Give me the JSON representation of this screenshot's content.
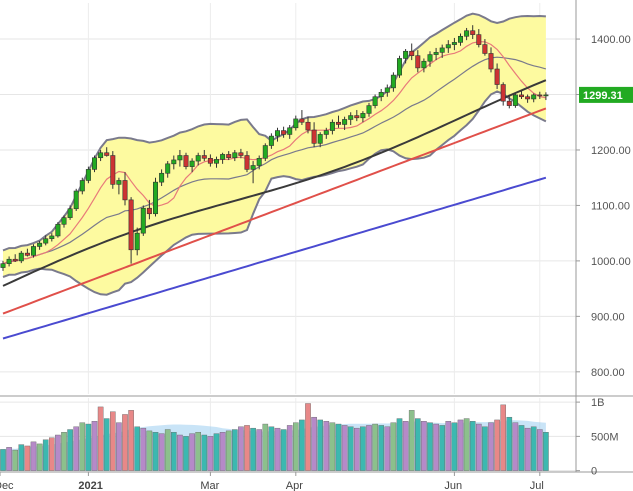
{
  "chart_data": {
    "type": "candlestick",
    "title": "",
    "price_axis": {
      "ticks": [
        {
          "value": 800,
          "label": "800.00"
        },
        {
          "value": 900,
          "label": "900.00"
        },
        {
          "value": 1000,
          "label": "1000.00"
        },
        {
          "value": 1100,
          "label": "1100.00"
        },
        {
          "value": 1200,
          "label": "1200.00"
        },
        {
          "value": 1300,
          "label": "1300.00"
        },
        {
          "value": 1400,
          "label": "1400.00"
        }
      ],
      "ylim": [
        760,
        1465
      ]
    },
    "volume_axis": {
      "ticks": [
        {
          "value": 0,
          "label": "0"
        },
        {
          "value": 500,
          "label": "500M"
        },
        {
          "value": 1000,
          "label": "1B"
        }
      ],
      "ylim": [
        -20,
        1060
      ]
    },
    "x_labels": [
      {
        "index": -1,
        "label": "Dec",
        "bold": false
      },
      {
        "index": 14,
        "label": "2021",
        "bold": true
      },
      {
        "index": 34,
        "label": "Mar",
        "bold": false
      },
      {
        "index": 48,
        "label": "Apr",
        "bold": false
      },
      {
        "index": 74,
        "label": "Jun",
        "bold": false
      },
      {
        "index": 88,
        "label": "Jul",
        "bold": false
      }
    ],
    "last_price": {
      "value": 1299.31,
      "label": "1299.31",
      "color": "#22aa22"
    },
    "colors": {
      "up": "#22aa22",
      "down": "#cc3333",
      "bollinger_fill": "#fdfaa0",
      "bollinger_line": "#7a7a8c",
      "ma_short": "#e87a7a",
      "ma_50": "#3a3a3a",
      "ma_100": "#e0504a",
      "ma_200": "#4a4ad0",
      "vol_up": "#8cc08c",
      "vol_down": "#e88888",
      "vol_alt1": "#3cb8b0",
      "vol_alt2": "#b58ac8",
      "vol_avg": "#9ccdf0"
    },
    "candles": [
      [
        988,
        1000,
        982,
        995
      ],
      [
        995,
        1008,
        990,
        1003
      ],
      [
        1003,
        1012,
        998,
        1000
      ],
      [
        1000,
        1018,
        996,
        1014
      ],
      [
        1014,
        1022,
        1008,
        1010
      ],
      [
        1010,
        1030,
        1006,
        1026
      ],
      [
        1026,
        1036,
        1020,
        1032
      ],
      [
        1032,
        1046,
        1028,
        1040
      ],
      [
        1040,
        1050,
        1035,
        1045
      ],
      [
        1045,
        1070,
        1042,
        1066
      ],
      [
        1066,
        1082,
        1060,
        1078
      ],
      [
        1078,
        1100,
        1074,
        1094
      ],
      [
        1094,
        1130,
        1090,
        1126
      ],
      [
        1126,
        1150,
        1120,
        1145
      ],
      [
        1145,
        1170,
        1140,
        1165
      ],
      [
        1165,
        1190,
        1160,
        1186
      ],
      [
        1186,
        1200,
        1180,
        1195
      ],
      [
        1195,
        1205,
        1188,
        1190
      ],
      [
        1190,
        1198,
        1130,
        1138
      ],
      [
        1138,
        1150,
        1120,
        1145
      ],
      [
        1145,
        1160,
        1100,
        1110
      ],
      [
        1110,
        1115,
        995,
        1020
      ],
      [
        1020,
        1060,
        1010,
        1050
      ],
      [
        1050,
        1100,
        1045,
        1095
      ],
      [
        1095,
        1110,
        1075,
        1085
      ],
      [
        1085,
        1150,
        1080,
        1142
      ],
      [
        1142,
        1165,
        1135,
        1158
      ],
      [
        1158,
        1180,
        1150,
        1175
      ],
      [
        1175,
        1190,
        1165,
        1182
      ],
      [
        1182,
        1200,
        1170,
        1190
      ],
      [
        1190,
        1195,
        1165,
        1170
      ],
      [
        1170,
        1185,
        1160,
        1180
      ],
      [
        1180,
        1195,
        1172,
        1190
      ],
      [
        1190,
        1200,
        1180,
        1185
      ],
      [
        1185,
        1192,
        1170,
        1176
      ],
      [
        1176,
        1188,
        1168,
        1183
      ],
      [
        1183,
        1195,
        1175,
        1192
      ],
      [
        1192,
        1198,
        1182,
        1186
      ],
      [
        1186,
        1200,
        1180,
        1195
      ],
      [
        1195,
        1202,
        1185,
        1190
      ],
      [
        1190,
        1198,
        1160,
        1165
      ],
      [
        1165,
        1180,
        1140,
        1172
      ],
      [
        1172,
        1190,
        1165,
        1185
      ],
      [
        1185,
        1212,
        1180,
        1208
      ],
      [
        1208,
        1230,
        1202,
        1225
      ],
      [
        1225,
        1240,
        1215,
        1235
      ],
      [
        1235,
        1242,
        1222,
        1228
      ],
      [
        1228,
        1245,
        1220,
        1240
      ],
      [
        1240,
        1262,
        1235,
        1256
      ],
      [
        1256,
        1272,
        1245,
        1250
      ],
      [
        1250,
        1260,
        1230,
        1236
      ],
      [
        1236,
        1250,
        1205,
        1212
      ],
      [
        1212,
        1232,
        1205,
        1228
      ],
      [
        1228,
        1240,
        1220,
        1235
      ],
      [
        1235,
        1255,
        1228,
        1250
      ],
      [
        1250,
        1262,
        1240,
        1246
      ],
      [
        1246,
        1260,
        1236,
        1255
      ],
      [
        1255,
        1268,
        1245,
        1262
      ],
      [
        1262,
        1272,
        1252,
        1258
      ],
      [
        1258,
        1270,
        1250,
        1266
      ],
      [
        1266,
        1285,
        1260,
        1280
      ],
      [
        1280,
        1300,
        1275,
        1296
      ],
      [
        1296,
        1310,
        1288,
        1304
      ],
      [
        1304,
        1318,
        1296,
        1312
      ],
      [
        1312,
        1340,
        1305,
        1335
      ],
      [
        1335,
        1370,
        1330,
        1365
      ],
      [
        1365,
        1382,
        1356,
        1378
      ],
      [
        1378,
        1392,
        1362,
        1370
      ],
      [
        1370,
        1380,
        1340,
        1348
      ],
      [
        1348,
        1365,
        1340,
        1360
      ],
      [
        1360,
        1378,
        1350,
        1372
      ],
      [
        1372,
        1384,
        1362,
        1376
      ],
      [
        1376,
        1390,
        1366,
        1384
      ],
      [
        1384,
        1398,
        1375,
        1390
      ],
      [
        1390,
        1402,
        1380,
        1394
      ],
      [
        1394,
        1410,
        1388,
        1405
      ],
      [
        1405,
        1420,
        1398,
        1415
      ],
      [
        1415,
        1425,
        1400,
        1408
      ],
      [
        1408,
        1418,
        1385,
        1390
      ],
      [
        1390,
        1400,
        1370,
        1374
      ],
      [
        1374,
        1385,
        1340,
        1346
      ],
      [
        1346,
        1356,
        1310,
        1318
      ],
      [
        1318,
        1322,
        1280,
        1288
      ],
      [
        1288,
        1300,
        1275,
        1280
      ],
      [
        1280,
        1302,
        1276,
        1299.31
      ],
      [
        1299.31,
        1306,
        1292,
        1296
      ],
      [
        1296,
        1300,
        1285,
        1292
      ],
      [
        1292,
        1302,
        1286,
        1299.31
      ],
      [
        1299.31,
        1305,
        1292,
        1298
      ],
      [
        1298,
        1304,
        1290,
        1299.31
      ]
    ],
    "volume": [
      {
        "v": 310,
        "c": "alt1"
      },
      {
        "v": 340,
        "c": "alt2"
      },
      {
        "v": 300,
        "c": "up"
      },
      {
        "v": 380,
        "c": "alt1"
      },
      {
        "v": 360,
        "c": "down"
      },
      {
        "v": 420,
        "c": "alt2"
      },
      {
        "v": 390,
        "c": "up"
      },
      {
        "v": 450,
        "c": "alt1"
      },
      {
        "v": 480,
        "c": "down"
      },
      {
        "v": 520,
        "c": "alt2"
      },
      {
        "v": 560,
        "c": "up"
      },
      {
        "v": 600,
        "c": "alt1"
      },
      {
        "v": 640,
        "c": "alt2"
      },
      {
        "v": 700,
        "c": "up"
      },
      {
        "v": 680,
        "c": "alt1"
      },
      {
        "v": 720,
        "c": "alt2"
      },
      {
        "v": 930,
        "c": "down"
      },
      {
        "v": 760,
        "c": "alt1"
      },
      {
        "v": 860,
        "c": "down"
      },
      {
        "v": 700,
        "c": "alt2"
      },
      {
        "v": 820,
        "c": "down"
      },
      {
        "v": 880,
        "c": "down"
      },
      {
        "v": 640,
        "c": "alt1"
      },
      {
        "v": 620,
        "c": "alt2"
      },
      {
        "v": 580,
        "c": "up"
      },
      {
        "v": 560,
        "c": "alt1"
      },
      {
        "v": 540,
        "c": "alt2"
      },
      {
        "v": 600,
        "c": "up"
      },
      {
        "v": 560,
        "c": "alt1"
      },
      {
        "v": 520,
        "c": "alt2"
      },
      {
        "v": 500,
        "c": "alt1"
      },
      {
        "v": 540,
        "c": "alt2"
      },
      {
        "v": 560,
        "c": "up"
      },
      {
        "v": 520,
        "c": "alt1"
      },
      {
        "v": 500,
        "c": "alt2"
      },
      {
        "v": 540,
        "c": "alt1"
      },
      {
        "v": 560,
        "c": "alt2"
      },
      {
        "v": 580,
        "c": "up"
      },
      {
        "v": 600,
        "c": "alt1"
      },
      {
        "v": 640,
        "c": "alt2"
      },
      {
        "v": 660,
        "c": "down"
      },
      {
        "v": 620,
        "c": "alt1"
      },
      {
        "v": 600,
        "c": "alt2"
      },
      {
        "v": 680,
        "c": "up"
      },
      {
        "v": 640,
        "c": "alt1"
      },
      {
        "v": 620,
        "c": "alt2"
      },
      {
        "v": 600,
        "c": "alt1"
      },
      {
        "v": 660,
        "c": "alt2"
      },
      {
        "v": 700,
        "c": "up"
      },
      {
        "v": 740,
        "c": "alt1"
      },
      {
        "v": 980,
        "c": "down"
      },
      {
        "v": 780,
        "c": "alt2"
      },
      {
        "v": 740,
        "c": "alt1"
      },
      {
        "v": 720,
        "c": "alt2"
      },
      {
        "v": 700,
        "c": "up"
      },
      {
        "v": 680,
        "c": "alt1"
      },
      {
        "v": 660,
        "c": "alt2"
      },
      {
        "v": 640,
        "c": "alt1"
      },
      {
        "v": 620,
        "c": "alt2"
      },
      {
        "v": 640,
        "c": "alt1"
      },
      {
        "v": 660,
        "c": "alt2"
      },
      {
        "v": 680,
        "c": "up"
      },
      {
        "v": 660,
        "c": "alt1"
      },
      {
        "v": 640,
        "c": "alt2"
      },
      {
        "v": 700,
        "c": "up"
      },
      {
        "v": 760,
        "c": "alt1"
      },
      {
        "v": 720,
        "c": "alt2"
      },
      {
        "v": 880,
        "c": "up"
      },
      {
        "v": 760,
        "c": "alt1"
      },
      {
        "v": 720,
        "c": "alt2"
      },
      {
        "v": 700,
        "c": "alt1"
      },
      {
        "v": 680,
        "c": "alt2"
      },
      {
        "v": 660,
        "c": "alt1"
      },
      {
        "v": 720,
        "c": "alt2"
      },
      {
        "v": 700,
        "c": "alt1"
      },
      {
        "v": 740,
        "c": "alt2"
      },
      {
        "v": 760,
        "c": "up"
      },
      {
        "v": 720,
        "c": "alt1"
      },
      {
        "v": 680,
        "c": "alt2"
      },
      {
        "v": 640,
        "c": "alt1"
      },
      {
        "v": 700,
        "c": "alt2"
      },
      {
        "v": 740,
        "c": "down"
      },
      {
        "v": 960,
        "c": "down"
      },
      {
        "v": 780,
        "c": "alt1"
      },
      {
        "v": 700,
        "c": "alt2"
      },
      {
        "v": 660,
        "c": "alt1"
      },
      {
        "v": 620,
        "c": "alt2"
      },
      {
        "v": 640,
        "c": "alt1"
      },
      {
        "v": 600,
        "c": "alt2"
      },
      {
        "v": 560,
        "c": "alt1"
      }
    ]
  }
}
